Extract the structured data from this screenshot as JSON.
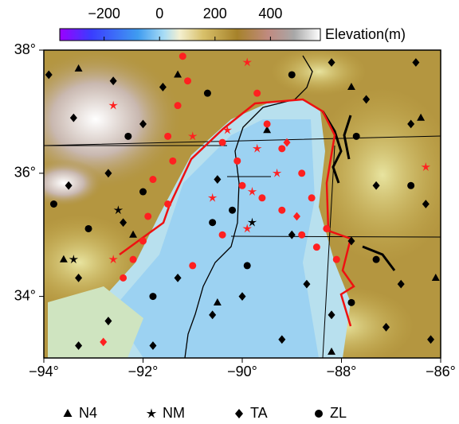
{
  "chart_data": {
    "type": "map",
    "colorbar": {
      "title": "Elevation(m)",
      "clim": [
        -360,
        580
      ],
      "ticks": [
        {
          "value": -200,
          "label": "−200"
        },
        0,
        200,
        400
      ]
    },
    "xlim": [
      -94,
      -86
    ],
    "ylim": [
      33,
      38
    ],
    "xticks": [
      {
        "value": -94,
        "label": "−94°"
      },
      {
        "value": -92,
        "label": "−92°"
      },
      {
        "value": -90,
        "label": "−90°"
      },
      {
        "value": -88,
        "label": "−88°"
      },
      {
        "value": -86,
        "label": "−86°"
      }
    ],
    "yticks": [
      {
        "value": 34,
        "label": "34°"
      },
      {
        "value": 36,
        "label": "36°"
      },
      {
        "value": 38,
        "label": "38°"
      }
    ],
    "series": [
      {
        "name": "N4",
        "marker": "triangle",
        "x": [
          -93.3,
          -91.3,
          -89.5,
          -87.8,
          -86.4,
          -93.6,
          -90.5,
          -88.2,
          -86.1,
          -92.2
        ],
        "values": [
          37.7,
          37.6,
          36.7,
          37.4,
          36.9,
          34.6,
          33.9,
          33.1,
          34.3,
          35.0
        ],
        "colors": [
          "#000000",
          "#000000",
          "#000000",
          "#000000",
          "#000000",
          "#000000",
          "#000000",
          "#000000",
          "#000000",
          "#000000"
        ]
      },
      {
        "name": "NM",
        "marker": "star",
        "x": [
          -92.6,
          -89.9,
          -91.0,
          -90.3,
          -89.7,
          -89.3,
          -90.6,
          -89.8,
          -86.3,
          -92.6,
          -89.9,
          -92.5,
          -93.4,
          -89.8
        ],
        "values": [
          37.1,
          37.8,
          36.6,
          36.7,
          36.4,
          36.0,
          35.6,
          35.7,
          36.1,
          34.6,
          35.1,
          35.4,
          34.6,
          35.2
        ],
        "colors": [
          "#ff2020",
          "#ff2020",
          "#ff2020",
          "#ff2020",
          "#ff2020",
          "#ff2020",
          "#ff2020",
          "#ff2020",
          "#ff2020",
          "#ff2020",
          "#ff2020",
          "#000000",
          "#000000",
          "#000000"
        ]
      },
      {
        "name": "TA",
        "marker": "diamond",
        "x": [
          -93.9,
          -92.6,
          -91.6,
          -88.2,
          -86.5,
          -93.4,
          -92.0,
          -87.5,
          -86.6,
          -93.5,
          -92.7,
          -90.5,
          -87.3,
          -86.3,
          -92.4,
          -89.0,
          -87.8,
          -93.3,
          -91.3,
          -90.0,
          -88.7,
          -86.8,
          -92.7,
          -90.6,
          -88.2,
          -93.3,
          -91.8,
          -89.2,
          -87.1,
          -86.2,
          -92.8,
          -89.1,
          -88.9
        ],
        "values": [
          37.6,
          37.5,
          37.4,
          37.8,
          37.8,
          36.9,
          36.8,
          37.2,
          36.8,
          35.8,
          36.0,
          35.9,
          35.8,
          35.5,
          35.2,
          35.0,
          34.9,
          34.3,
          34.3,
          34.0,
          34.2,
          34.2,
          33.6,
          33.7,
          33.7,
          33.2,
          33.2,
          33.3,
          33.5,
          33.3,
          33.26,
          36.5,
          35.3
        ],
        "colors": [
          "#000000",
          "#000000",
          "#000000",
          "#000000",
          "#000000",
          "#000000",
          "#000000",
          "#000000",
          "#000000",
          "#000000",
          "#000000",
          "#000000",
          "#000000",
          "#000000",
          "#000000",
          "#000000",
          "#000000",
          "#000000",
          "#000000",
          "#000000",
          "#000000",
          "#000000",
          "#000000",
          "#000000",
          "#000000",
          "#000000",
          "#000000",
          "#000000",
          "#000000",
          "#000000",
          "#ff2020",
          "#ff2020",
          "#ff2020"
        ]
      },
      {
        "name": "ZL",
        "marker": "circle",
        "x": [
          -91.2,
          -91.1,
          -91.3,
          -91.5,
          -91.4,
          -91.8,
          -91.5,
          -91.9,
          -92.0,
          -92.2,
          -92.4,
          -90.4,
          -90.1,
          -90.0,
          -89.6,
          -89.2,
          -88.8,
          -88.5,
          -88.1,
          -89.7,
          -89.5,
          -89.2,
          -88.8,
          -88.6,
          -88.3,
          -90.4,
          -91.0,
          -92.3,
          -90.7,
          -89.0,
          -87.7,
          -86.6,
          -93.1,
          -92.0,
          -90.6,
          -89.9,
          -87.3,
          -91.8,
          -93.8,
          -90.2,
          -87.8
        ],
        "values": [
          37.9,
          37.5,
          37.1,
          36.6,
          36.2,
          35.9,
          35.5,
          35.3,
          34.9,
          34.6,
          34.3,
          36.5,
          36.2,
          35.8,
          35.6,
          35.4,
          35.0,
          34.8,
          34.6,
          37.3,
          36.8,
          36.4,
          36.0,
          35.6,
          35.1,
          35.0,
          34.5,
          36.6,
          37.3,
          37.6,
          36.6,
          35.8,
          35.1,
          35.7,
          35.2,
          34.5,
          34.6,
          34.0,
          35.5,
          35.4,
          33.9
        ],
        "colors": [
          "#ff2020",
          "#ff2020",
          "#ff2020",
          "#ff2020",
          "#ff2020",
          "#ff2020",
          "#ff2020",
          "#ff2020",
          "#ff2020",
          "#ff2020",
          "#ff2020",
          "#ff2020",
          "#ff2020",
          "#ff2020",
          "#ff2020",
          "#ff2020",
          "#ff2020",
          "#ff2020",
          "#ff2020",
          "#ff2020",
          "#ff2020",
          "#ff2020",
          "#ff2020",
          "#ff2020",
          "#ff2020",
          "#ff2020",
          "#ff2020",
          "#000000",
          "#000000",
          "#000000",
          "#000000",
          "#000000",
          "#000000",
          "#000000",
          "#000000",
          "#000000",
          "#000000",
          "#000000",
          "#000000",
          "#000000",
          "#000000"
        ]
      }
    ]
  }
}
